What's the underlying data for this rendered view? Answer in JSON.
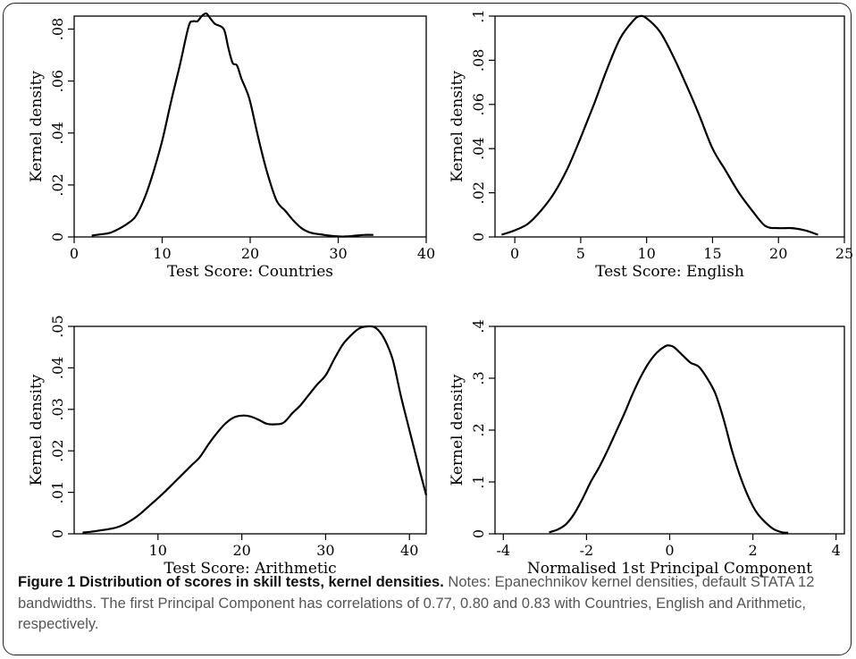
{
  "caption": {
    "title": "Figure 1 Distribution of scores in skill tests, kernel densities.",
    "body": " Notes: Epanechnikov kernel densities, default STATA 12 bandwidths. The first Principal Component has correlations of 0.77, 0.80 and 0.83 with Countries, English and Arithmetic, respectively."
  },
  "chart_data": [
    {
      "type": "line",
      "xlabel": "Test Score: Countries",
      "ylabel": "Kernel density",
      "xlim": [
        0,
        40
      ],
      "ylim": [
        0,
        0.085
      ],
      "xticks": [
        0,
        10,
        20,
        30,
        40
      ],
      "xtick_labels": [
        "0",
        "10",
        "20",
        "30",
        "40"
      ],
      "yticks": [
        0,
        0.02,
        0.04,
        0.06,
        0.08
      ],
      "ytick_labels": [
        "0",
        ".02",
        ".04",
        ".06",
        ".08"
      ],
      "grid": false,
      "series": [
        {
          "x": [
            2,
            3,
            4,
            5,
            6,
            7,
            8,
            9,
            10,
            11,
            12,
            13,
            13.5,
            14,
            14.5,
            15,
            15.5,
            16,
            17,
            17.5,
            18,
            18.5,
            19,
            19.5,
            20,
            21,
            22,
            23,
            24,
            25,
            26,
            27,
            28,
            29,
            30,
            31,
            32,
            33,
            34
          ],
          "y": [
            0.0005,
            0.001,
            0.0015,
            0.003,
            0.005,
            0.008,
            0.015,
            0.025,
            0.037,
            0.052,
            0.066,
            0.081,
            0.083,
            0.083,
            0.085,
            0.086,
            0.084,
            0.082,
            0.08,
            0.073,
            0.067,
            0.066,
            0.061,
            0.057,
            0.052,
            0.037,
            0.024,
            0.014,
            0.01,
            0.006,
            0.003,
            0.0015,
            0.001,
            0.0005,
            0.0002,
            0.0002,
            0.0005,
            0.0008,
            0.0008
          ]
        }
      ]
    },
    {
      "type": "line",
      "xlabel": "Test Score: English",
      "ylabel": "Kernel density",
      "xlim": [
        -1.5,
        25
      ],
      "ylim": [
        0,
        0.1
      ],
      "xticks": [
        0,
        5,
        10,
        15,
        20,
        25
      ],
      "xtick_labels": [
        "0",
        "5",
        "10",
        "15",
        "20",
        "25"
      ],
      "yticks": [
        0,
        0.02,
        0.04,
        0.06,
        0.08,
        0.1
      ],
      "ytick_labels": [
        "0",
        ".02",
        ".04",
        ".06",
        ".08",
        ".1"
      ],
      "grid": false,
      "series": [
        {
          "x": [
            -1,
            0,
            1,
            2,
            3,
            4,
            5,
            6,
            7,
            8,
            9,
            9.5,
            10,
            11,
            12,
            13,
            14,
            15,
            16,
            17,
            18,
            19,
            20,
            21,
            22,
            23
          ],
          "y": [
            0.001,
            0.003,
            0.006,
            0.012,
            0.02,
            0.031,
            0.045,
            0.06,
            0.076,
            0.09,
            0.098,
            0.1,
            0.099,
            0.093,
            0.082,
            0.069,
            0.055,
            0.04,
            0.03,
            0.02,
            0.012,
            0.005,
            0.004,
            0.004,
            0.003,
            0.001
          ]
        }
      ]
    },
    {
      "type": "line",
      "xlabel": "Test Score: Arithmetic",
      "ylabel": "Kernel density",
      "xlim": [
        0,
        42
      ],
      "ylim": [
        0,
        0.05
      ],
      "xticks": [
        10,
        20,
        30,
        40
      ],
      "xtick_labels": [
        "10",
        "20",
        "30",
        "40"
      ],
      "yticks": [
        0,
        0.01,
        0.02,
        0.03,
        0.04,
        0.05
      ],
      "ytick_labels": [
        "0",
        ".01",
        ".02",
        ".03",
        ".04",
        ".05"
      ],
      "grid": false,
      "series": [
        {
          "x": [
            1,
            2,
            3,
            4,
            5,
            6,
            7,
            8,
            9,
            10,
            11,
            12,
            13,
            14,
            15,
            16,
            17,
            18,
            19,
            20,
            21,
            22,
            23,
            24,
            25,
            26,
            27,
            28,
            29,
            30,
            31,
            32,
            33,
            34,
            35,
            36,
            37,
            38,
            39,
            40,
            41,
            42
          ],
          "y": [
            0.0003,
            0.0005,
            0.0008,
            0.0011,
            0.0015,
            0.0023,
            0.0035,
            0.005,
            0.0068,
            0.0086,
            0.0105,
            0.0125,
            0.0145,
            0.0165,
            0.0185,
            0.0215,
            0.0242,
            0.0265,
            0.028,
            0.0285,
            0.0283,
            0.0275,
            0.0265,
            0.0264,
            0.0268,
            0.029,
            0.031,
            0.0335,
            0.036,
            0.0382,
            0.042,
            0.0455,
            0.0478,
            0.0495,
            0.05,
            0.0496,
            0.047,
            0.042,
            0.033,
            0.025,
            0.017,
            0.0093
          ]
        }
      ]
    },
    {
      "type": "line",
      "xlabel": "Normalised 1st Principal Component",
      "ylabel": "Kernel density",
      "xlim": [
        -4.2,
        4.2
      ],
      "ylim": [
        0,
        0.4
      ],
      "xticks": [
        -4,
        -2,
        0,
        2,
        4
      ],
      "xtick_labels": [
        "-4",
        "-2",
        "0",
        "2",
        "4"
      ],
      "yticks": [
        0,
        0.1,
        0.2,
        0.3,
        0.4
      ],
      "ytick_labels": [
        "0",
        ".1",
        ".2",
        ".3",
        ".4"
      ],
      "grid": false,
      "series": [
        {
          "x": [
            -2.9,
            -2.7,
            -2.5,
            -2.3,
            -2.1,
            -1.9,
            -1.7,
            -1.5,
            -1.3,
            -1.1,
            -0.9,
            -0.7,
            -0.5,
            -0.3,
            -0.1,
            0,
            0.1,
            0.3,
            0.5,
            0.7,
            0.9,
            1.1,
            1.3,
            1.5,
            1.7,
            1.9,
            2.1,
            2.3,
            2.5,
            2.7,
            2.85
          ],
          "y": [
            0.003,
            0.008,
            0.018,
            0.038,
            0.067,
            0.1,
            0.128,
            0.16,
            0.195,
            0.23,
            0.268,
            0.302,
            0.33,
            0.35,
            0.362,
            0.363,
            0.36,
            0.345,
            0.33,
            0.322,
            0.3,
            0.27,
            0.22,
            0.16,
            0.11,
            0.07,
            0.04,
            0.022,
            0.009,
            0.003,
            0.002
          ]
        }
      ]
    }
  ]
}
